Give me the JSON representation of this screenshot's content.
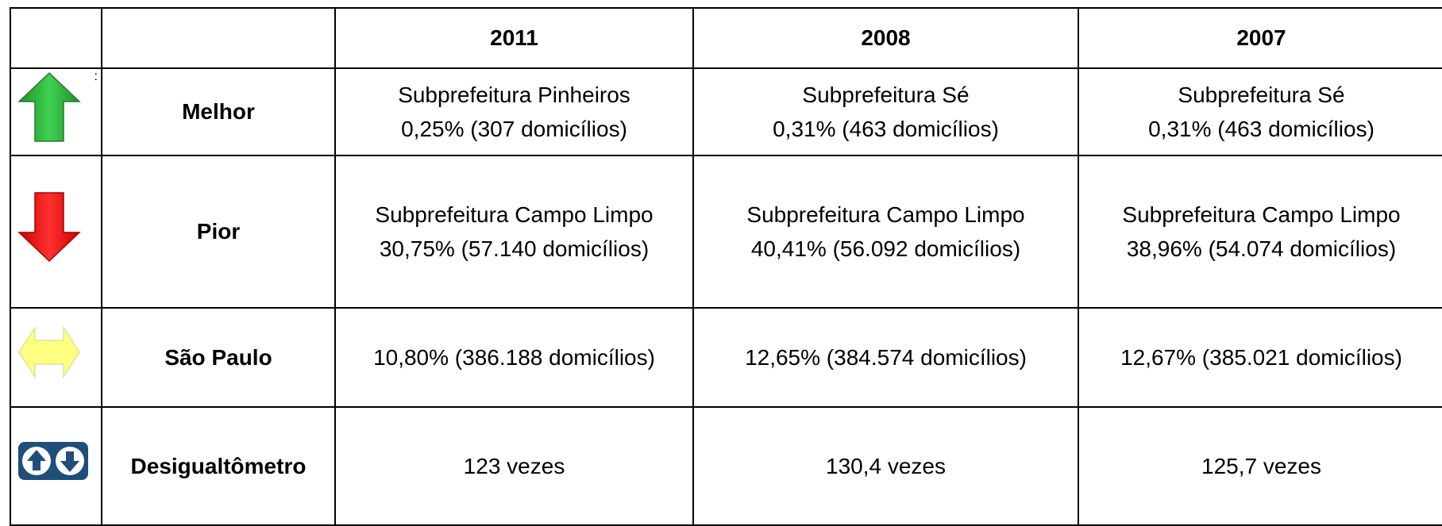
{
  "table": {
    "header": [
      "2011",
      "2008",
      "2007"
    ],
    "rows": [
      {
        "label": "Melhor",
        "marker": ":",
        "cells": [
          [
            "Subprefeitura Pinheiros",
            "0,25% (307 domicílios)"
          ],
          [
            "Subprefeitura Sé",
            "0,31% (463 domicílios)"
          ],
          [
            "Subprefeitura Sé",
            "0,31% (463 domicílios)"
          ]
        ]
      },
      {
        "label": "Pior",
        "cells": [
          [
            "Subprefeitura Campo Limpo",
            "30,75% (57.140 domicílios)"
          ],
          [
            "Subprefeitura Campo Limpo",
            "40,41% (56.092 domicílios)"
          ],
          [
            "Subprefeitura Campo Limpo",
            "38,96% (54.074 domicílios)"
          ]
        ]
      },
      {
        "label": "São Paulo",
        "cells": [
          [
            "10,80% (386.188 domicílios)"
          ],
          [
            "12,65% (384.574 domicílios)"
          ],
          [
            "12,67% (385.021 domicílios)"
          ]
        ]
      },
      {
        "label": "Desigualtômetro",
        "cells": [
          [
            "123 vezes"
          ],
          [
            "130,4 vezes"
          ],
          [
            "125,7 vezes"
          ]
        ]
      }
    ]
  }
}
